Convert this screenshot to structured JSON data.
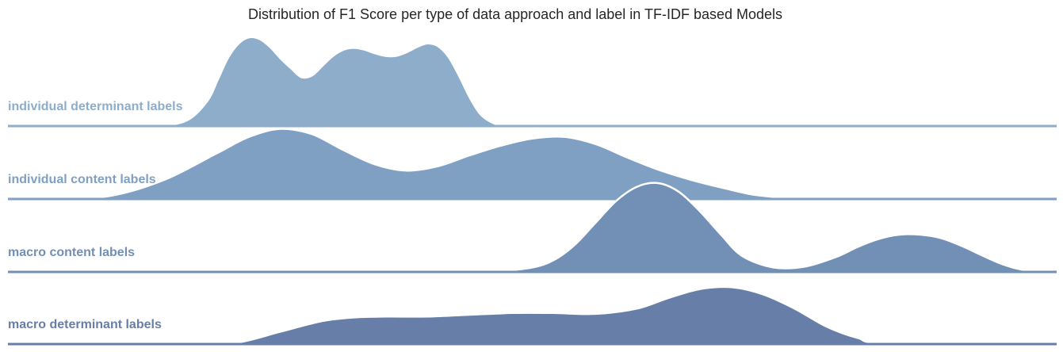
{
  "chart_data": {
    "type": "ridgeline",
    "title": "Distribution of F1 Score per type of data approach and label in TF-IDF based Models",
    "xlabel": "",
    "ylabel": "",
    "grid": false,
    "legend": "none",
    "series": [
      {
        "name": "individual determinant labels",
        "color": "#8dadcb",
        "x": [
          0.0,
          0.05,
          0.1,
          0.14,
          0.17,
          0.19,
          0.2,
          0.21,
          0.22,
          0.23,
          0.24,
          0.25,
          0.26,
          0.27,
          0.28,
          0.29,
          0.3,
          0.31,
          0.32,
          0.33,
          0.34,
          0.35,
          0.36,
          0.37,
          0.38,
          0.39,
          0.4,
          0.41,
          0.42,
          0.43,
          0.44,
          0.45,
          0.46,
          0.47,
          0.5,
          0.6,
          1.0
        ],
        "y": [
          0,
          0,
          0,
          0.003,
          0.06,
          0.28,
          0.52,
          0.77,
          0.93,
          1.0,
          0.98,
          0.89,
          0.76,
          0.65,
          0.55,
          0.57,
          0.68,
          0.79,
          0.86,
          0.88,
          0.86,
          0.82,
          0.79,
          0.79,
          0.83,
          0.89,
          0.93,
          0.9,
          0.78,
          0.57,
          0.33,
          0.14,
          0.05,
          0.015,
          0,
          0,
          0
        ]
      },
      {
        "name": "individual content labels",
        "color": "#7f9fc3",
        "x": [
          0.0,
          0.05,
          0.1,
          0.15,
          0.2,
          0.23,
          0.26,
          0.29,
          0.32,
          0.35,
          0.38,
          0.41,
          0.44,
          0.47,
          0.5,
          0.53,
          0.56,
          0.59,
          0.62,
          0.65,
          0.68,
          0.71,
          0.74,
          0.77,
          0.8,
          1.0
        ],
        "y": [
          0,
          0,
          0.04,
          0.22,
          0.52,
          0.7,
          0.79,
          0.73,
          0.55,
          0.39,
          0.32,
          0.37,
          0.49,
          0.6,
          0.68,
          0.7,
          0.62,
          0.47,
          0.33,
          0.22,
          0.13,
          0.05,
          0.015,
          0,
          0,
          0
        ]
      },
      {
        "name": "macro content labels",
        "color": "#728fb6",
        "x": [
          0.0,
          0.4,
          0.44,
          0.47,
          0.5,
          0.52,
          0.54,
          0.56,
          0.58,
          0.6,
          0.62,
          0.64,
          0.66,
          0.68,
          0.7,
          0.73,
          0.76,
          0.79,
          0.81,
          0.83,
          0.85,
          0.87,
          0.89,
          0.91,
          0.93,
          0.95,
          0.97,
          1.0
        ],
        "y": [
          0,
          0,
          0,
          0.01,
          0.05,
          0.13,
          0.3,
          0.55,
          0.8,
          0.96,
          1.0,
          0.9,
          0.68,
          0.42,
          0.18,
          0.05,
          0.06,
          0.17,
          0.28,
          0.37,
          0.42,
          0.42,
          0.38,
          0.29,
          0.18,
          0.08,
          0.02,
          0
        ]
      },
      {
        "name": "macro determinant labels",
        "color": "#677fa8",
        "x": [
          0.0,
          0.18,
          0.22,
          0.26,
          0.3,
          0.33,
          0.36,
          0.4,
          0.44,
          0.48,
          0.52,
          0.56,
          0.6,
          0.63,
          0.66,
          0.69,
          0.72,
          0.75,
          0.78,
          0.81,
          0.84,
          1.0
        ],
        "y": [
          0,
          0,
          0.02,
          0.14,
          0.26,
          0.3,
          0.31,
          0.31,
          0.33,
          0.35,
          0.35,
          0.34,
          0.4,
          0.52,
          0.62,
          0.64,
          0.56,
          0.4,
          0.2,
          0.07,
          0.01,
          0
        ]
      }
    ]
  }
}
